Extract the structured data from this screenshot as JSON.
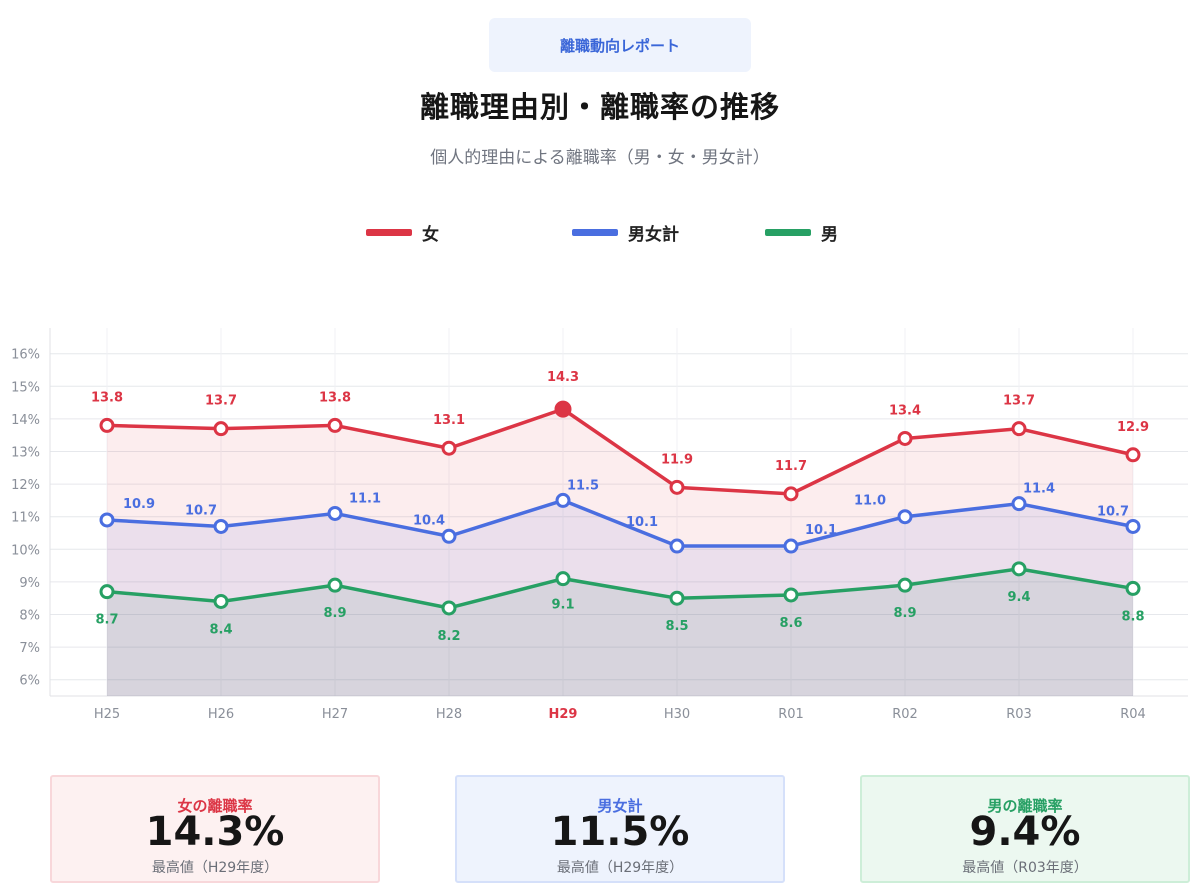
{
  "header": {
    "badge": "離職動向レポート",
    "title": "離職理由別・離職率の推移",
    "subtitle": "個人的理由による離職率（男・女・男女計）"
  },
  "legend": [
    {
      "label": "女",
      "color": "#dc3545"
    },
    {
      "label": "男女計",
      "color": "#4a6ee0"
    },
    {
      "label": "男",
      "color": "#27a064"
    }
  ],
  "chart_data": {
    "type": "line",
    "categories": [
      "H25",
      "H26",
      "H27",
      "H28",
      "H29",
      "H30",
      "R01",
      "R02",
      "R03",
      "R04"
    ],
    "highlight_category": "H29",
    "series": [
      {
        "name": "女",
        "color": "#dc3545",
        "values": [
          13.8,
          13.7,
          13.8,
          13.1,
          14.3,
          11.9,
          11.7,
          13.4,
          13.7,
          12.9
        ]
      },
      {
        "name": "男女計",
        "color": "#4a6ee0",
        "values": [
          10.9,
          10.7,
          11.1,
          10.4,
          11.5,
          10.1,
          10.1,
          11.0,
          11.4,
          10.7
        ]
      },
      {
        "name": "男",
        "color": "#27a064",
        "values": [
          8.7,
          8.4,
          8.9,
          8.2,
          9.1,
          8.5,
          8.6,
          8.9,
          9.4,
          8.8
        ]
      }
    ],
    "y_ticks": [
      "6%",
      "7%",
      "8%",
      "9%",
      "10%",
      "11%",
      "12%",
      "13%",
      "14%",
      "15%",
      "16%"
    ],
    "ylim": [
      5.5,
      16.8
    ],
    "grid": true,
    "legend_position": "top"
  },
  "cards": [
    {
      "label": "女の離職率",
      "value": "14.3%",
      "note": "最高値（H29年度）",
      "color": "#dc3545",
      "bg": "#fdf1f1",
      "border": "#f8d7da"
    },
    {
      "label": "男女計",
      "value": "11.5%",
      "note": "最高値（H29年度）",
      "color": "#4a6ee0",
      "bg": "#eef3fd",
      "border": "#d5e0fa"
    },
    {
      "label": "男の離職率",
      "value": "9.4%",
      "note": "最高値（R03年度）",
      "color": "#27a064",
      "bg": "#ecf8f0",
      "border": "#cdeed8"
    }
  ]
}
